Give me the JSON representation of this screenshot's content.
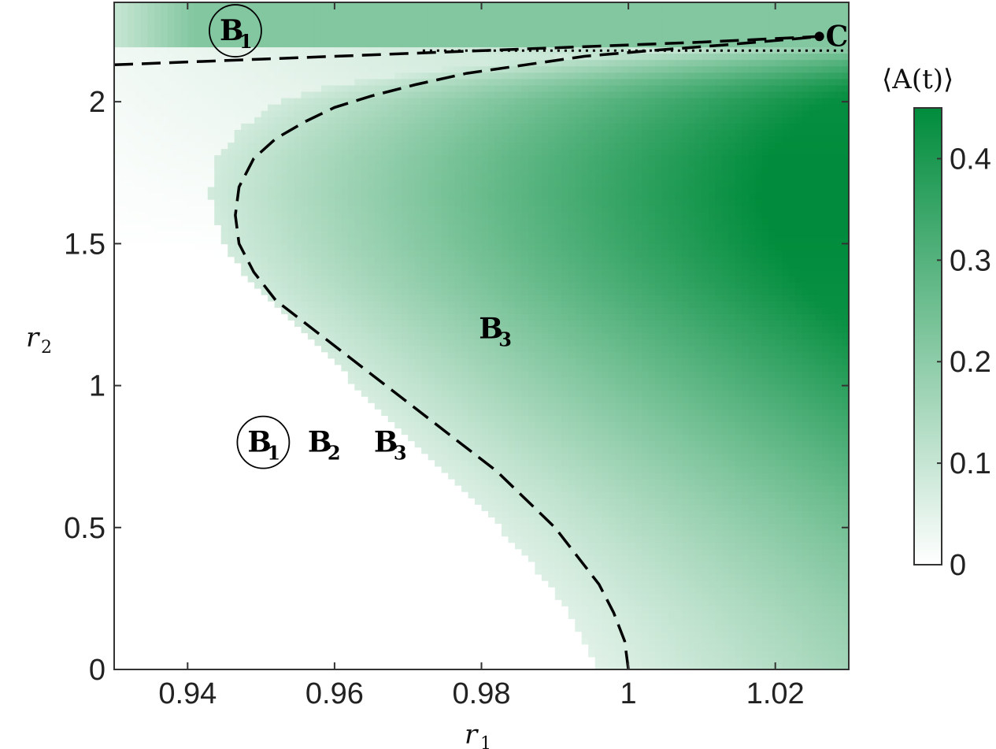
{
  "chart_data": {
    "type": "heatmap",
    "xlabel": "r",
    "xlabel_subscript": "1",
    "ylabel": "r",
    "ylabel_subscript": "2",
    "xlim": [
      0.93,
      1.03
    ],
    "ylim": [
      0,
      2.35
    ],
    "xticks": [
      0.94,
      0.96,
      0.98,
      1,
      1.02
    ],
    "xtick_labels": [
      "0.94",
      "0.96",
      "0.98",
      "1",
      "1.02"
    ],
    "yticks": [
      0,
      0.5,
      1,
      1.5,
      2
    ],
    "ytick_labels": [
      "0",
      "0.5",
      "1",
      "1.5",
      "2"
    ],
    "colorbar": {
      "label": "⟨A(t)⟩",
      "range": [
        0,
        0.45
      ],
      "ticks": [
        0,
        0.1,
        0.2,
        0.3,
        0.4
      ],
      "tick_labels": [
        "0",
        "0.1",
        "0.2",
        "0.3",
        "0.4"
      ],
      "color_low": "#ffffff",
      "color_high": "#008c3c"
    },
    "field": {
      "description_values": "A(t) is approximately 0 left of the boundary r1 = 1 - 0.2*(r2-1.67)^2 / ... and grows to ~0.45 near r1 = 1.03, r2 = 1.65; above r2 = 2.2 a pale band of ~0.15-0.2",
      "onset_boundary": {
        "r1": [
          1.0,
          0.996,
          0.99,
          0.983,
          0.975,
          0.967,
          0.959,
          0.953,
          0.949,
          0.947,
          0.948,
          0.951,
          0.956,
          0.964,
          0.974,
          0.985,
          0.998,
          1.012,
          1.026
        ],
        "r2": [
          0.0,
          0.2,
          0.4,
          0.6,
          0.8,
          1.0,
          1.2,
          1.35,
          1.5,
          1.67,
          1.8,
          1.9,
          2.0,
          2.06,
          2.1,
          2.14,
          2.17,
          2.2,
          2.22
        ]
      },
      "peak_r2": 1.67,
      "peak_value": 0.45
    },
    "curves": [
      {
        "name": "",
        "style": "dashed",
        "r1": [
          0.93,
          0.95,
          0.97,
          0.99,
          1.01,
          1.026
        ],
        "r2": [
          2.13,
          2.15,
          2.17,
          2.19,
          2.21,
          2.23
        ]
      },
      {
        "name": "",
        "style": "dashed",
        "r1": [
          1.0,
          0.9995,
          0.998,
          0.996,
          0.993,
          0.99,
          0.986,
          0.982,
          0.977,
          0.972,
          0.967,
          0.962,
          0.957,
          0.952,
          0.949,
          0.947,
          0.9465,
          0.947,
          0.949,
          0.952,
          0.956,
          0.96,
          0.965,
          0.971,
          0.978,
          0.986,
          0.994,
          1.003,
          1.013,
          1.022,
          1.026
        ],
        "r2": [
          0.0,
          0.1,
          0.2,
          0.3,
          0.4,
          0.5,
          0.6,
          0.7,
          0.8,
          0.9,
          1.0,
          1.1,
          1.2,
          1.3,
          1.4,
          1.5,
          1.6,
          1.7,
          1.8,
          1.87,
          1.93,
          1.98,
          2.02,
          2.06,
          2.1,
          2.13,
          2.16,
          2.18,
          2.2,
          2.22,
          2.23
        ]
      },
      {
        "name": "",
        "style": "dotted",
        "r1": [
          0.972,
          1.03
        ],
        "r2": [
          2.18,
          2.18
        ]
      }
    ],
    "point": {
      "label": "C",
      "r1": 1.026,
      "r2": 2.23
    },
    "annotations": [
      {
        "text": "B",
        "sub": "1",
        "circled": true,
        "r1": 0.9465,
        "r2": 2.25
      },
      {
        "text": "B",
        "sub": "1",
        "circled": true,
        "r1": 0.9503,
        "r2": 0.8
      },
      {
        "text": "B",
        "sub": "2",
        "circled": false,
        "r1": 0.9585,
        "r2": 0.8
      },
      {
        "text": "B",
        "sub": "3",
        "circled": false,
        "r1": 0.9675,
        "r2": 0.8
      },
      {
        "text": "B",
        "sub": "3",
        "circled": false,
        "r1": 0.9818,
        "r2": 1.2
      }
    ]
  }
}
